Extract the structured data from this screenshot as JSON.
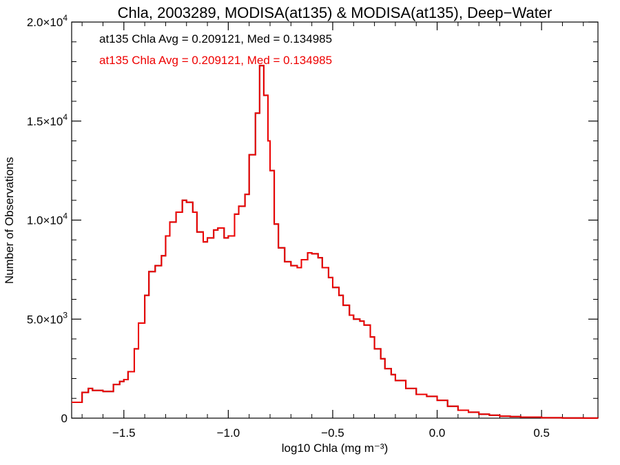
{
  "chart_data": {
    "type": "line",
    "title": "Chla, 2003289, MODISA(at135) & MODISA(at135), Deep−Water",
    "xlabel": "log10 Chla (mg m⁻³)",
    "ylabel": "Number of Observations",
    "xlim": [
      -1.75,
      0.77
    ],
    "ylim": [
      0,
      20000
    ],
    "grid": false,
    "annotations": [
      {
        "text": "at135 Chla Avg = 0.209121, Med = 0.134985",
        "color": "#000000"
      },
      {
        "text": "at135 Chla Avg = 0.209121, Med = 0.134985",
        "color": "#ee0000"
      }
    ],
    "xticks": [
      {
        "value": -1.5,
        "label": "−1.5"
      },
      {
        "value": -1.0,
        "label": "−1.0"
      },
      {
        "value": -0.5,
        "label": "−0.5"
      },
      {
        "value": 0.0,
        "label": "0.0"
      },
      {
        "value": 0.5,
        "label": "0.5"
      }
    ],
    "yticks": [
      {
        "value": 0,
        "label": "0",
        "exp": ""
      },
      {
        "value": 5000,
        "label": "5.0×10",
        "exp": "3"
      },
      {
        "value": 10000,
        "label": "1.0×10",
        "exp": "4"
      },
      {
        "value": 15000,
        "label": "1.5×10",
        "exp": "4"
      },
      {
        "value": 20000,
        "label": "2.0×10",
        "exp": "4"
      }
    ],
    "series": [
      {
        "color": "#000000",
        "x": [
          -1.75,
          -1.7,
          -1.67,
          -1.65,
          -1.6,
          -1.55,
          -1.52,
          -1.5,
          -1.48,
          -1.45,
          -1.43,
          -1.4,
          -1.38,
          -1.35,
          -1.32,
          -1.3,
          -1.28,
          -1.25,
          -1.22,
          -1.2,
          -1.17,
          -1.15,
          -1.12,
          -1.1,
          -1.07,
          -1.05,
          -1.02,
          -1.0,
          -0.97,
          -0.95,
          -0.92,
          -0.9,
          -0.87,
          -0.85,
          -0.83,
          -0.81,
          -0.8,
          -0.78,
          -0.76,
          -0.73,
          -0.7,
          -0.67,
          -0.65,
          -0.62,
          -0.6,
          -0.57,
          -0.55,
          -0.52,
          -0.5,
          -0.47,
          -0.45,
          -0.42,
          -0.4,
          -0.37,
          -0.35,
          -0.32,
          -0.3,
          -0.27,
          -0.25,
          -0.22,
          -0.2,
          -0.15,
          -0.1,
          -0.05,
          0.0,
          0.05,
          0.1,
          0.15,
          0.2,
          0.25,
          0.3,
          0.35,
          0.4,
          0.5,
          0.6,
          0.7,
          0.77
        ],
        "values": [
          800,
          1300,
          1500,
          1400,
          1350,
          1700,
          1850,
          1950,
          2350,
          3500,
          4800,
          6200,
          7400,
          7700,
          8200,
          9200,
          9900,
          10400,
          11000,
          10900,
          10400,
          9400,
          8900,
          9100,
          9500,
          9600,
          9100,
          9200,
          10300,
          10700,
          11300,
          13300,
          15400,
          17800,
          16300,
          14000,
          12500,
          9800,
          8600,
          7900,
          7700,
          7600,
          8000,
          8350,
          8300,
          8100,
          7600,
          7100,
          6600,
          6200,
          5700,
          5200,
          5000,
          4900,
          4700,
          4100,
          3500,
          3000,
          2500,
          2200,
          1900,
          1500,
          1200,
          1100,
          900,
          600,
          400,
          300,
          200,
          150,
          100,
          80,
          50,
          20,
          10,
          5,
          0
        ]
      },
      {
        "color": "#ee0000",
        "x": [
          -1.75,
          -1.7,
          -1.67,
          -1.65,
          -1.6,
          -1.55,
          -1.52,
          -1.5,
          -1.48,
          -1.45,
          -1.43,
          -1.4,
          -1.38,
          -1.35,
          -1.32,
          -1.3,
          -1.28,
          -1.25,
          -1.22,
          -1.2,
          -1.17,
          -1.15,
          -1.12,
          -1.1,
          -1.07,
          -1.05,
          -1.02,
          -1.0,
          -0.97,
          -0.95,
          -0.92,
          -0.9,
          -0.87,
          -0.85,
          -0.83,
          -0.81,
          -0.8,
          -0.78,
          -0.76,
          -0.73,
          -0.7,
          -0.67,
          -0.65,
          -0.62,
          -0.6,
          -0.57,
          -0.55,
          -0.52,
          -0.5,
          -0.47,
          -0.45,
          -0.42,
          -0.4,
          -0.37,
          -0.35,
          -0.32,
          -0.3,
          -0.27,
          -0.25,
          -0.22,
          -0.2,
          -0.15,
          -0.1,
          -0.05,
          0.0,
          0.05,
          0.1,
          0.15,
          0.2,
          0.25,
          0.3,
          0.35,
          0.4,
          0.5,
          0.6,
          0.7,
          0.77
        ],
        "values": [
          800,
          1300,
          1500,
          1400,
          1350,
          1700,
          1850,
          1950,
          2350,
          3500,
          4800,
          6200,
          7400,
          7700,
          8200,
          9200,
          9900,
          10400,
          11000,
          10900,
          10400,
          9400,
          8900,
          9100,
          9500,
          9600,
          9100,
          9200,
          10300,
          10700,
          11300,
          13300,
          15400,
          17800,
          16300,
          14000,
          12500,
          9800,
          8600,
          7900,
          7700,
          7600,
          8000,
          8350,
          8300,
          8100,
          7600,
          7100,
          6600,
          6200,
          5700,
          5200,
          5000,
          4900,
          4700,
          4100,
          3500,
          3000,
          2500,
          2200,
          1900,
          1500,
          1200,
          1100,
          900,
          600,
          400,
          300,
          200,
          150,
          100,
          80,
          50,
          20,
          10,
          5,
          0
        ]
      }
    ]
  }
}
